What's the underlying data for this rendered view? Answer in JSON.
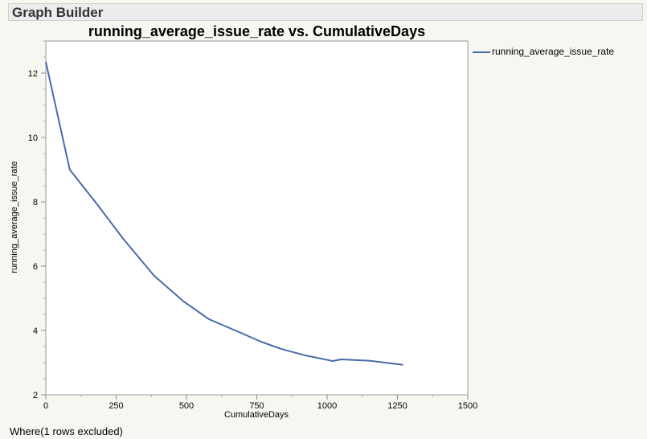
{
  "header": {
    "title": "Graph Builder"
  },
  "footer": {
    "text": "Where(1 rows excluded)"
  },
  "chart_data": {
    "type": "line",
    "title": "running_average_issue_rate vs. CumulativeDays",
    "xlabel": "CumulativeDays",
    "ylabel": "running_average_issue_rate",
    "xlim": [
      0,
      1500
    ],
    "ylim": [
      2,
      13
    ],
    "xticks": [
      0,
      250,
      500,
      750,
      1000,
      1250,
      1500
    ],
    "yticks": [
      2,
      4,
      6,
      8,
      10,
      12
    ],
    "legend_position": "top-right",
    "series": [
      {
        "name": "running_average_issue_rate",
        "color": "#4a6aab",
        "x": [
          0,
          85,
          180,
          275,
          385,
          490,
          580,
          700,
          765,
          835,
          920,
          1020,
          1050,
          1150,
          1270
        ],
        "y": [
          12.35,
          9.0,
          7.95,
          6.85,
          5.7,
          4.9,
          4.35,
          3.9,
          3.65,
          3.43,
          3.23,
          3.05,
          3.1,
          3.06,
          2.93
        ]
      }
    ]
  }
}
